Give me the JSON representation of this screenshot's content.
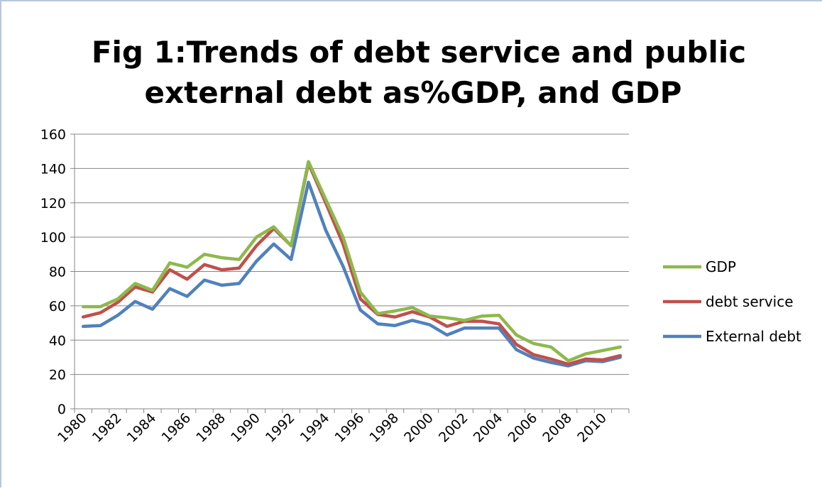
{
  "chart_data": {
    "type": "line",
    "title_lines": [
      "Fig 1:Trends of debt service and public",
      "external debt as%GDP, and GDP"
    ],
    "xlabel": "",
    "ylabel": "",
    "ylim": [
      0,
      160
    ],
    "yticks": [
      0,
      20,
      40,
      60,
      80,
      100,
      120,
      140,
      160
    ],
    "x": [
      1980,
      1981,
      1982,
      1983,
      1984,
      1985,
      1986,
      1987,
      1988,
      1989,
      1990,
      1991,
      1992,
      1993,
      1994,
      1995,
      1996,
      1997,
      1998,
      1999,
      2000,
      2001,
      2002,
      2003,
      2004,
      2005,
      2006,
      2007,
      2008,
      2009,
      2010,
      2011
    ],
    "xtick_labels": [
      "1980",
      "1982",
      "1984",
      "1986",
      "1988",
      "1990",
      "1992",
      "1994",
      "1996",
      "1998",
      "2000",
      "2002",
      "2004",
      "2006",
      "2008",
      "2010"
    ],
    "grid": "horizontal",
    "legend_position": "right",
    "series": [
      {
        "name": "GDP",
        "color": "#8db94b",
        "values": [
          59.5,
          59.5,
          64,
          73,
          69,
          85,
          82.5,
          90,
          88,
          87,
          100,
          106,
          95,
          144,
          122,
          100,
          68,
          55.5,
          57,
          59,
          54,
          53,
          51.5,
          54,
          54.5,
          43,
          38,
          36,
          28,
          32,
          34,
          36
        ]
      },
      {
        "name": "debt service",
        "color": "#c0504d",
        "values": [
          53.5,
          56,
          62,
          71,
          68,
          81,
          75.5,
          84,
          81,
          82,
          95,
          105,
          95,
          143,
          120,
          96,
          64,
          55,
          53.5,
          56.5,
          53.5,
          48,
          51,
          51,
          49.5,
          37.5,
          31.5,
          29,
          26,
          29,
          28.5,
          31
        ]
      },
      {
        "name": "External debt",
        "color": "#4f81bd",
        "values": [
          48,
          48.5,
          54.5,
          62.5,
          58,
          70,
          65.5,
          75,
          72,
          73,
          86,
          96,
          87,
          132,
          104,
          83,
          57.5,
          49.5,
          48.5,
          51.5,
          49,
          43,
          47,
          47,
          47,
          34.5,
          29.5,
          27,
          25,
          28,
          27.5,
          30
        ]
      }
    ]
  }
}
